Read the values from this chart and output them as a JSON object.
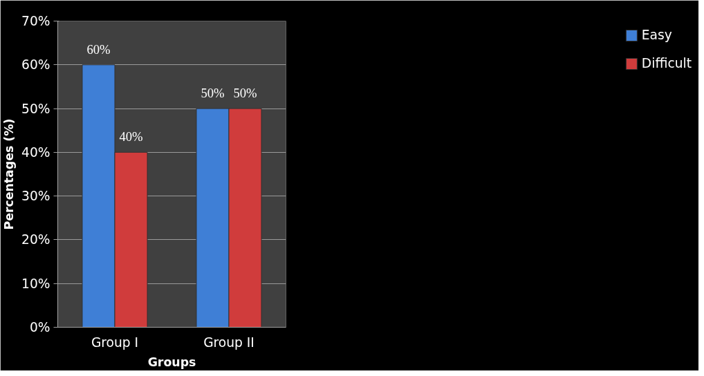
{
  "chart_data": {
    "type": "bar",
    "xlabel": "Groups",
    "ylabel": "Percentages (%)",
    "categories": [
      "Group I",
      "Group II"
    ],
    "series": [
      {
        "name": "Easy",
        "color": "#3f7fd6",
        "values": [
          60,
          50
        ],
        "value_labels": [
          "60%",
          "50%"
        ]
      },
      {
        "name": "Difficult",
        "color": "#d03c3c",
        "values": [
          40,
          50
        ],
        "value_labels": [
          "40%",
          "50%"
        ]
      }
    ],
    "ylim": [
      0,
      70
    ],
    "yticks": [
      {
        "value": 0,
        "label": "0%"
      },
      {
        "value": 10,
        "label": "10%"
      },
      {
        "value": 20,
        "label": "20%"
      },
      {
        "value": 30,
        "label": "30%"
      },
      {
        "value": 40,
        "label": "40%"
      },
      {
        "value": 50,
        "label": "50%"
      },
      {
        "value": 60,
        "label": "60%"
      },
      {
        "value": 70,
        "label": "70%"
      }
    ],
    "grid": "y",
    "legend": "right"
  }
}
